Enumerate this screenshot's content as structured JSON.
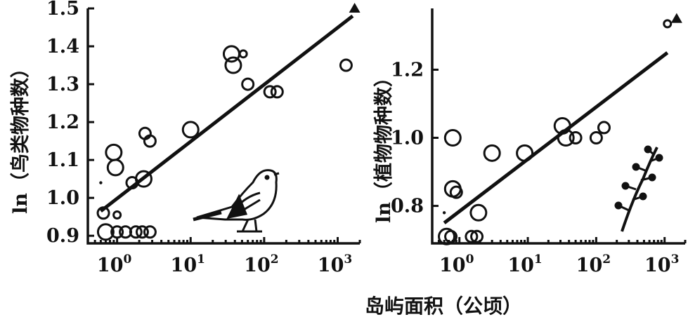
{
  "shared_xlabel": "岛屿面积（公顷）",
  "chart_data": [
    {
      "type": "scatter",
      "xscale": "log",
      "xlim": [
        0.4,
        2000
      ],
      "ylim": [
        0.88,
        1.5
      ],
      "ylabel_prefix": "ln",
      "ylabel": "（鸟类物种数）",
      "ytick_labels": [
        "0.9",
        "1.0",
        "1.1",
        "1.2",
        "1.3",
        "1.4",
        "1.5"
      ],
      "ytick_values": [
        0.9,
        1.0,
        1.1,
        1.2,
        1.3,
        1.4,
        1.5
      ],
      "xtick_values": [
        1,
        10,
        100,
        1000
      ],
      "xtick_exponents": [
        "0",
        "1",
        "2",
        "3"
      ],
      "xtick_base": "10",
      "fit_line": {
        "x": [
          0.6,
          1600
        ],
        "y": [
          0.965,
          1.48
        ]
      },
      "points": [
        {
          "x": 0.6,
          "y": 1.04,
          "size": "dot"
        },
        {
          "x": 0.65,
          "y": 0.96,
          "size": "s"
        },
        {
          "x": 0.7,
          "y": 0.91,
          "size": "m"
        },
        {
          "x": 0.9,
          "y": 1.12,
          "size": "m"
        },
        {
          "x": 0.95,
          "y": 1.08,
          "size": "m"
        },
        {
          "x": 1.0,
          "y": 0.955,
          "size": "xs"
        },
        {
          "x": 1.0,
          "y": 0.91,
          "size": "s"
        },
        {
          "x": 1.3,
          "y": 0.91,
          "size": "s"
        },
        {
          "x": 1.6,
          "y": 1.04,
          "size": "s"
        },
        {
          "x": 1.8,
          "y": 0.91,
          "size": "s"
        },
        {
          "x": 2.2,
          "y": 0.91,
          "size": "s"
        },
        {
          "x": 2.3,
          "y": 1.05,
          "size": "m"
        },
        {
          "x": 2.4,
          "y": 1.17,
          "size": "s"
        },
        {
          "x": 2.8,
          "y": 1.15,
          "size": "s"
        },
        {
          "x": 2.8,
          "y": 0.91,
          "size": "s"
        },
        {
          "x": 10,
          "y": 1.18,
          "size": "m"
        },
        {
          "x": 36,
          "y": 1.38,
          "size": "m"
        },
        {
          "x": 38,
          "y": 1.35,
          "size": "m"
        },
        {
          "x": 52,
          "y": 1.38,
          "size": "xs"
        },
        {
          "x": 60,
          "y": 1.3,
          "size": "s"
        },
        {
          "x": 120,
          "y": 1.28,
          "size": "s"
        },
        {
          "x": 150,
          "y": 1.28,
          "size": "s"
        },
        {
          "x": 1300,
          "y": 1.35,
          "size": "s"
        },
        {
          "x": 1700,
          "y": 1.5,
          "size": "triangle"
        }
      ]
    },
    {
      "type": "scatter",
      "xscale": "log",
      "xlim": [
        0.4,
        2000
      ],
      "ylim": [
        0.69,
        1.38
      ],
      "ylabel_prefix": "ln",
      "ylabel": "（植物物种数）",
      "ytick_labels": [
        "0.8",
        "1.0",
        "1.2"
      ],
      "ytick_values": [
        0.8,
        1.0,
        1.2
      ],
      "xtick_values": [
        1,
        10,
        100,
        1000
      ],
      "xtick_exponents": [
        "0",
        "1",
        "2",
        "3"
      ],
      "xtick_base": "10",
      "fit_line": {
        "x": [
          0.6,
          1100
        ],
        "y": [
          0.75,
          1.25
        ]
      },
      "points": [
        {
          "x": 0.6,
          "y": 0.78,
          "size": "dot"
        },
        {
          "x": 0.65,
          "y": 0.71,
          "size": "m"
        },
        {
          "x": 0.75,
          "y": 0.71,
          "size": "s"
        },
        {
          "x": 0.8,
          "y": 1.0,
          "size": "m"
        },
        {
          "x": 0.8,
          "y": 0.85,
          "size": "m"
        },
        {
          "x": 0.9,
          "y": 0.84,
          "size": "s"
        },
        {
          "x": 1.5,
          "y": 0.71,
          "size": "s"
        },
        {
          "x": 1.8,
          "y": 0.71,
          "size": "s"
        },
        {
          "x": 1.9,
          "y": 0.78,
          "size": "m"
        },
        {
          "x": 3,
          "y": 0.955,
          "size": "m"
        },
        {
          "x": 9,
          "y": 0.955,
          "size": "m"
        },
        {
          "x": 32,
          "y": 1.035,
          "size": "m"
        },
        {
          "x": 36,
          "y": 1.0,
          "size": "m"
        },
        {
          "x": 50,
          "y": 1.0,
          "size": "s"
        },
        {
          "x": 100,
          "y": 1.0,
          "size": "s"
        },
        {
          "x": 130,
          "y": 1.03,
          "size": "s"
        },
        {
          "x": 1100,
          "y": 1.335,
          "size": "xs"
        },
        {
          "x": 1500,
          "y": 1.35,
          "size": "triangle"
        }
      ]
    }
  ]
}
